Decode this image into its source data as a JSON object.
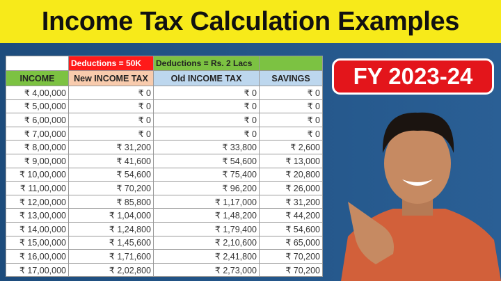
{
  "title": "Income Tax Calculation Examples",
  "badge": "FY 2023-24",
  "table": {
    "group_headers": [
      "",
      "Deductions = 50K",
      "Deductions = Rs. 2 Lacs",
      ""
    ],
    "group_colors": [
      "#ffffff",
      "#ff1a1a",
      "#7cc242",
      "#7cc242"
    ],
    "headers": [
      "INCOME",
      "New INCOME TAX",
      "Old INCOME TAX",
      "SAVINGS"
    ],
    "header_colors": [
      "#7cc242",
      "#f8cbad",
      "#bdd7ee",
      "#bdd7ee"
    ],
    "rows": [
      [
        "₹ 4,00,000",
        "₹ 0",
        "₹ 0",
        "₹ 0"
      ],
      [
        "₹ 5,00,000",
        "₹ 0",
        "₹ 0",
        "₹ 0"
      ],
      [
        "₹ 6,00,000",
        "₹ 0",
        "₹ 0",
        "₹ 0"
      ],
      [
        "₹ 7,00,000",
        "₹ 0",
        "₹ 0",
        "₹ 0"
      ],
      [
        "₹ 8,00,000",
        "₹ 31,200",
        "₹ 33,800",
        "₹ 2,600"
      ],
      [
        "₹ 9,00,000",
        "₹ 41,600",
        "₹ 54,600",
        "₹ 13,000"
      ],
      [
        "₹ 10,00,000",
        "₹ 54,600",
        "₹ 75,400",
        "₹ 20,800"
      ],
      [
        "₹ 11,00,000",
        "₹ 70,200",
        "₹ 96,200",
        "₹ 26,000"
      ],
      [
        "₹ 12,00,000",
        "₹ 85,800",
        "₹ 1,17,000",
        "₹ 31,200"
      ],
      [
        "₹ 13,00,000",
        "₹ 1,04,000",
        "₹ 1,48,200",
        "₹ 44,200"
      ],
      [
        "₹ 14,00,000",
        "₹ 1,24,800",
        "₹ 1,79,400",
        "₹ 54,600"
      ],
      [
        "₹ 15,00,000",
        "₹ 1,45,600",
        "₹ 2,10,600",
        "₹ 65,000"
      ],
      [
        "₹ 16,00,000",
        "₹ 1,71,600",
        "₹ 2,41,800",
        "₹ 70,200"
      ],
      [
        "₹ 17,00,000",
        "₹ 2,02,800",
        "₹ 2,73,000",
        "₹ 70,200"
      ]
    ]
  }
}
